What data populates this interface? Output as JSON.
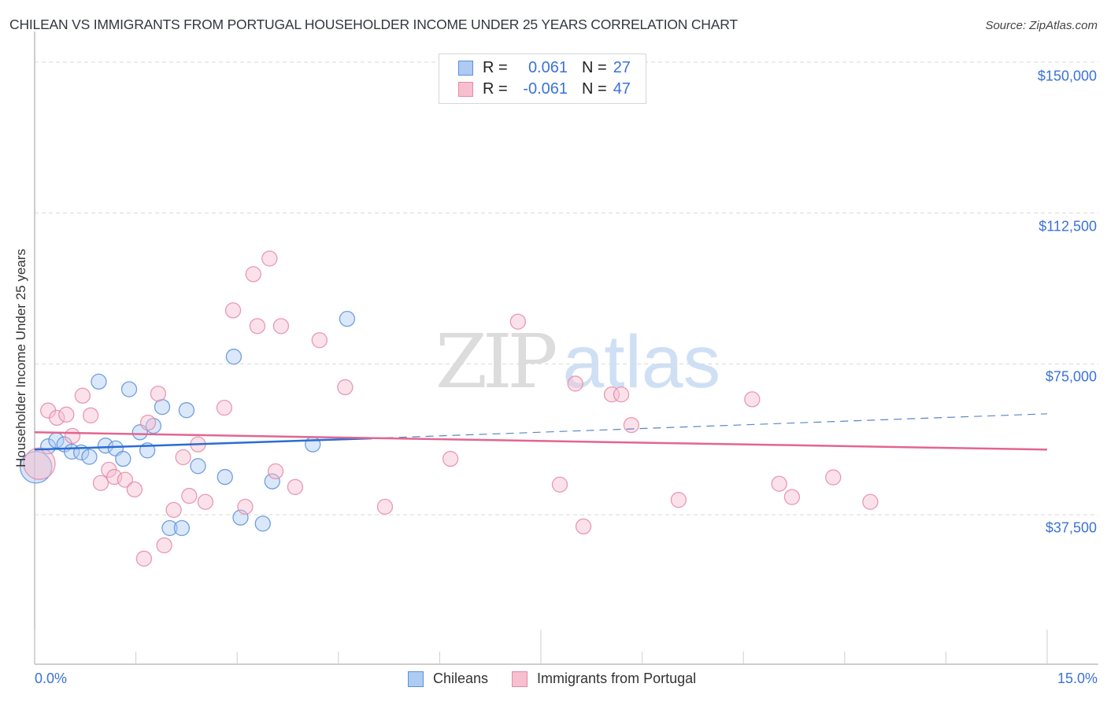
{
  "header": {
    "title": "CHILEAN VS IMMIGRANTS FROM PORTUGAL HOUSEHOLDER INCOME UNDER 25 YEARS CORRELATION CHART",
    "source": "Source: ZipAtlas.com"
  },
  "watermark": {
    "zip": "ZIP",
    "atlas": "atlas"
  },
  "axes": {
    "ylabel": "Householder Income Under 25 years",
    "yticks": [
      "$150,000",
      "$112,500",
      "$75,000",
      "$37,500"
    ],
    "xticks": [
      "0.0%",
      "15.0%"
    ]
  },
  "legend": {
    "rows": [
      {
        "r_label": "R =",
        "r_value": "0.061",
        "n_label": "N =",
        "n_value": "27",
        "color": "#aecbf3"
      },
      {
        "r_label": "R =",
        "r_value": "-0.061",
        "n_label": "N =",
        "n_value": "47",
        "color": "#f7bfd0"
      }
    ]
  },
  "bottom_legend": {
    "items": [
      {
        "label": "Chileans",
        "color": "#aecbf3"
      },
      {
        "label": "Immigrants from Portugal",
        "color": "#f7bfd0"
      }
    ]
  },
  "colors": {
    "blue_fill": "#aecbf3",
    "blue_stroke": "#5b8fdc",
    "blue_line": "#2a6dd4",
    "pink_fill": "#f7bfd0",
    "pink_stroke": "#e58aa6",
    "pink_line": "#e2668f",
    "tick_text": "#3b72d8",
    "grid": "#d9d9d9"
  },
  "chart_data": {
    "type": "scatter",
    "title": "CHILEAN VS IMMIGRANTS FROM PORTUGAL HOUSEHOLDER INCOME UNDER 25 YEARS CORRELATION CHART",
    "xlabel": "",
    "ylabel": "Householder Income Under 25 years",
    "xlim": [
      0,
      15
    ],
    "ylim": [
      0,
      155000
    ],
    "x_unit": "%",
    "yticks": [
      37500,
      75000,
      112500,
      150000
    ],
    "xticks_labeled": [
      0,
      15
    ],
    "grid": "horizontal dashed",
    "legend_position": "top-center and bottom",
    "series": [
      {
        "name": "Chileans",
        "R": 0.061,
        "N": 27,
        "points": [
          [
            0.02,
            49300,
            "large"
          ],
          [
            0.2,
            54500
          ],
          [
            0.32,
            56000
          ],
          [
            0.44,
            55000
          ],
          [
            0.55,
            53200
          ],
          [
            0.69,
            53000
          ],
          [
            0.81,
            51900
          ],
          [
            0.95,
            70600
          ],
          [
            1.05,
            54700
          ],
          [
            1.2,
            54000
          ],
          [
            1.31,
            51400
          ],
          [
            1.4,
            68700
          ],
          [
            1.56,
            58000
          ],
          [
            1.67,
            53500
          ],
          [
            1.76,
            59600
          ],
          [
            1.89,
            64300
          ],
          [
            2.0,
            34200
          ],
          [
            2.18,
            34200
          ],
          [
            2.25,
            63500
          ],
          [
            2.42,
            49600
          ],
          [
            2.82,
            46900
          ],
          [
            2.95,
            76800
          ],
          [
            3.05,
            36800
          ],
          [
            3.38,
            35300
          ],
          [
            3.52,
            45800
          ],
          [
            4.12,
            55000
          ],
          [
            4.63,
            86200
          ]
        ],
        "trend": {
          "x0": 0,
          "y0": 53700,
          "x_solid_end": 5.0,
          "y_solid_end": 56500,
          "x1": 15,
          "y1": 62600,
          "dashed_after_solid": true
        }
      },
      {
        "name": "Immigrants from Portugal",
        "R": -0.061,
        "N": 47,
        "points": [
          [
            0.07,
            50200,
            "large"
          ],
          [
            0.2,
            63400
          ],
          [
            0.33,
            61600
          ],
          [
            0.47,
            62400
          ],
          [
            0.56,
            57100
          ],
          [
            0.71,
            67100
          ],
          [
            0.83,
            62200
          ],
          [
            0.98,
            45400
          ],
          [
            1.1,
            48700
          ],
          [
            1.18,
            46900
          ],
          [
            1.34,
            46200
          ],
          [
            1.48,
            43800
          ],
          [
            1.62,
            26600
          ],
          [
            1.68,
            60400
          ],
          [
            1.83,
            67600
          ],
          [
            1.92,
            29900
          ],
          [
            2.06,
            38700
          ],
          [
            2.2,
            51800
          ],
          [
            2.29,
            42200
          ],
          [
            2.42,
            55000
          ],
          [
            2.53,
            40700
          ],
          [
            2.81,
            64100
          ],
          [
            2.94,
            88300
          ],
          [
            3.12,
            39500
          ],
          [
            3.24,
            97300
          ],
          [
            3.3,
            84400
          ],
          [
            3.48,
            101200
          ],
          [
            3.57,
            48300
          ],
          [
            3.65,
            84400
          ],
          [
            3.86,
            44400
          ],
          [
            4.22,
            80900
          ],
          [
            4.6,
            69200
          ],
          [
            5.19,
            39500
          ],
          [
            6.16,
            51400
          ],
          [
            7.16,
            85500
          ],
          [
            7.78,
            45000
          ],
          [
            8.01,
            70100
          ],
          [
            8.13,
            34600
          ],
          [
            8.55,
            67400
          ],
          [
            8.69,
            67400
          ],
          [
            8.84,
            59800
          ],
          [
            9.54,
            41200
          ],
          [
            10.63,
            66200
          ],
          [
            11.03,
            45200
          ],
          [
            11.22,
            41900
          ],
          [
            11.83,
            46800
          ],
          [
            12.38,
            40700
          ]
        ],
        "trend": {
          "x0": 0,
          "y0": 58000,
          "x1": 15,
          "y1": 53700
        }
      }
    ]
  }
}
